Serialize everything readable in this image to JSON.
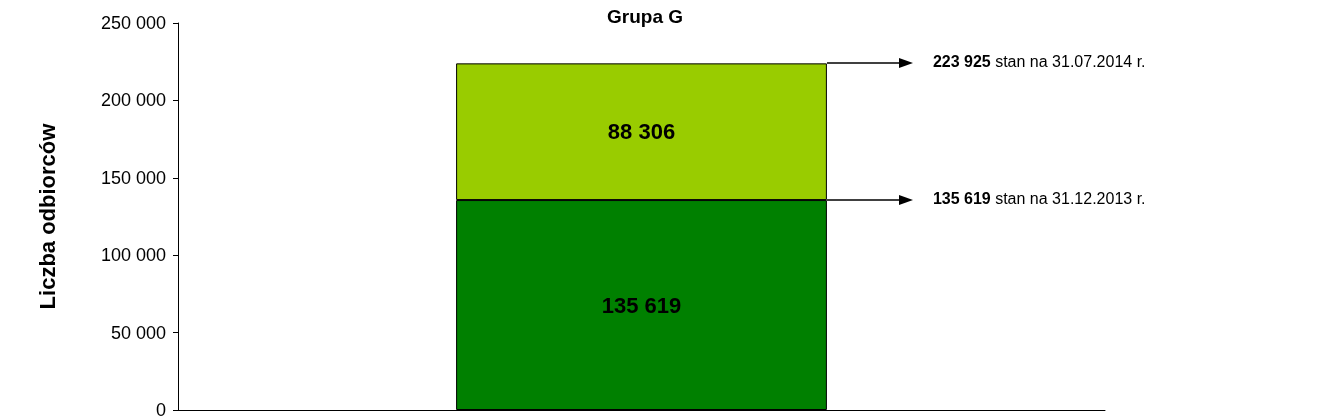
{
  "chart_data": {
    "type": "bar",
    "title": "Grupa G",
    "ylabel": "Liczba odbiorców",
    "categories": [
      null
    ],
    "stacked": true,
    "series": [
      {
        "color": "#008000",
        "values": [
          135619
        ],
        "value_labels": [
          "135 619"
        ]
      },
      {
        "color": "#99cc00",
        "values": [
          88306
        ],
        "value_labels": [
          "88 306"
        ]
      }
    ],
    "ylim": [
      0,
      250000
    ],
    "yticks": [
      {
        "value": 0,
        "label": "0"
      },
      {
        "value": 50000,
        "label": "50 000"
      },
      {
        "value": 100000,
        "label": "100 000"
      },
      {
        "value": 150000,
        "label": "150 000"
      },
      {
        "value": 200000,
        "label": "200 000"
      },
      {
        "value": 250000,
        "label": "250 000"
      }
    ],
    "grid": false,
    "annotations": [
      "223 925 stan na 31.07.2014 r.",
      "135 619 stan na 31.12.2013 r."
    ]
  }
}
